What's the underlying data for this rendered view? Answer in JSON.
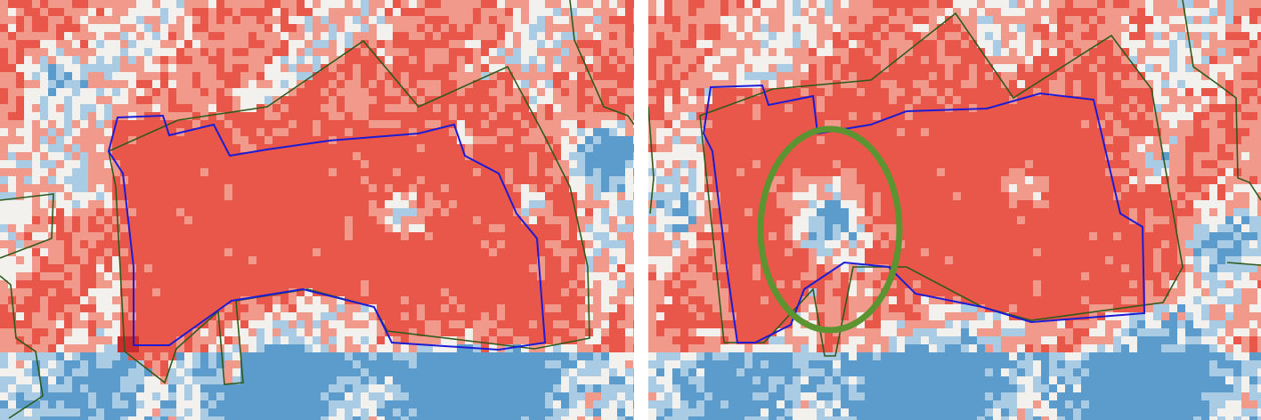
{
  "figure": {
    "panels": [
      {
        "id": "left",
        "has_highlight": false
      },
      {
        "id": "right",
        "has_highlight": true
      }
    ],
    "colors": {
      "high": "#e8574a",
      "mid_high": "#f19a8c",
      "neutral": "#f3f1ee",
      "mid_low": "#a9cce4",
      "low": "#5b9ccd",
      "outline_blue": "#1c1cd4",
      "outline_green": "#2e5a1c",
      "highlight_ellipse": "#5c9431",
      "divider": "#ffffff"
    }
  }
}
